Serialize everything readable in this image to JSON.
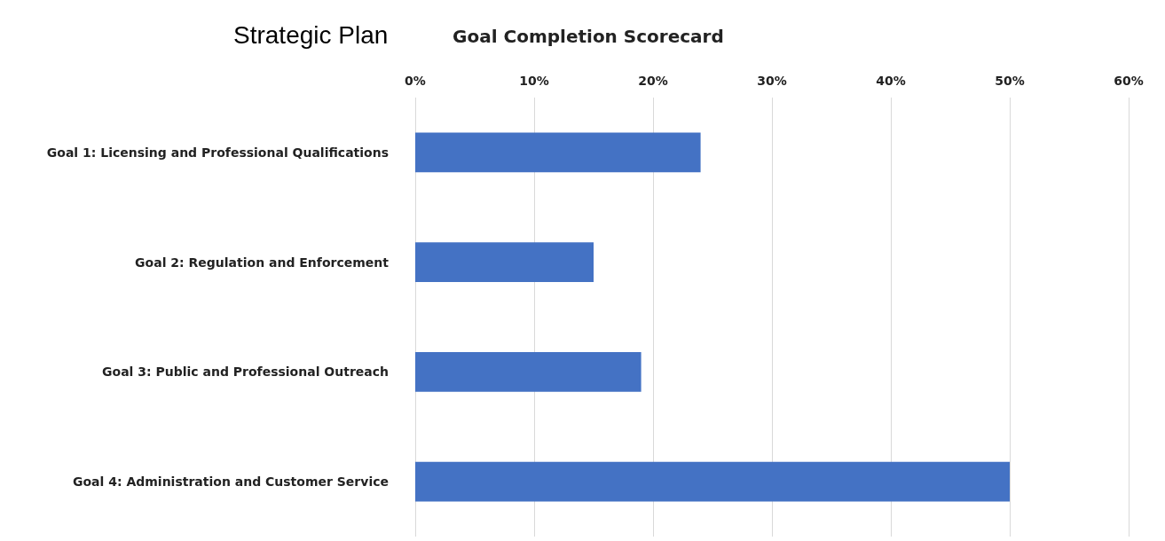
{
  "chart_data": {
    "type": "bar",
    "orientation": "horizontal",
    "title": "Strategic Plan",
    "subtitle": "Goal Completion Scorecard",
    "categories": [
      "Goal 1: Licensing and Professional Qualifications",
      "Goal 2: Regulation and Enforcement",
      "Goal 3: Public and Professional Outreach",
      "Goal 4: Administration and Customer Service"
    ],
    "values": [
      24,
      15,
      19,
      50
    ],
    "color": "#4472c4",
    "xlim": [
      0,
      60
    ],
    "xticks": [
      {
        "value": 0,
        "label": "0%"
      },
      {
        "value": 10,
        "label": "10%"
      },
      {
        "value": 20,
        "label": "20%"
      },
      {
        "value": 30,
        "label": "30%"
      },
      {
        "value": 40,
        "label": "40%"
      },
      {
        "value": 50,
        "label": "50%"
      },
      {
        "value": 60,
        "label": "60%"
      }
    ],
    "grid": "x"
  }
}
